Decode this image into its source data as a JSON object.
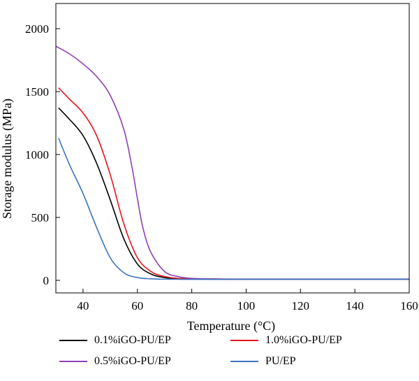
{
  "chart_data": {
    "type": "line",
    "xlabel": "Temperature (°C)",
    "ylabel": "Storage modulus (MPa)",
    "xlim": [
      30,
      160
    ],
    "ylim": [
      -100,
      2200
    ],
    "xticks": [
      40,
      60,
      80,
      100,
      120,
      140,
      160
    ],
    "yticks": [
      0,
      500,
      1000,
      1500,
      2000
    ],
    "grid": false,
    "legend_position": "bottom",
    "series": [
      {
        "name": "0.1%iGO-PU/EP",
        "color": "#000000",
        "x": [
          31,
          35,
          40,
          45,
          50,
          55,
          60,
          65,
          70,
          75,
          80,
          90,
          100,
          120,
          140,
          160
        ],
        "y": [
          1370,
          1280,
          1150,
          930,
          640,
          330,
          130,
          50,
          22,
          14,
          11,
          9,
          9,
          9,
          9,
          9
        ]
      },
      {
        "name": "1.0%iGO-PU/EP",
        "color": "#e8141b",
        "x": [
          31,
          35,
          40,
          45,
          50,
          55,
          60,
          65,
          70,
          75,
          80,
          90,
          100,
          120,
          140,
          160
        ],
        "y": [
          1530,
          1440,
          1330,
          1150,
          840,
          450,
          180,
          70,
          30,
          16,
          12,
          10,
          9,
          9,
          9,
          9
        ]
      },
      {
        "name": "0.5%iGO-PU/EP",
        "color": "#8e3fb3",
        "x": [
          30,
          35,
          40,
          45,
          50,
          55,
          58,
          60,
          62,
          65,
          70,
          75,
          80,
          90,
          100,
          120,
          140,
          160
        ],
        "y": [
          1860,
          1800,
          1720,
          1620,
          1470,
          1200,
          900,
          650,
          420,
          220,
          70,
          30,
          16,
          11,
          10,
          10,
          10,
          10
        ]
      },
      {
        "name": "PU/EP",
        "color": "#3a73bf",
        "x": [
          31,
          35,
          40,
          45,
          50,
          55,
          60,
          65,
          70,
          80,
          90,
          100,
          120,
          140,
          160
        ],
        "y": [
          1130,
          920,
          690,
          420,
          180,
          60,
          22,
          12,
          9,
          8,
          8,
          8,
          8,
          8,
          8
        ]
      }
    ]
  }
}
